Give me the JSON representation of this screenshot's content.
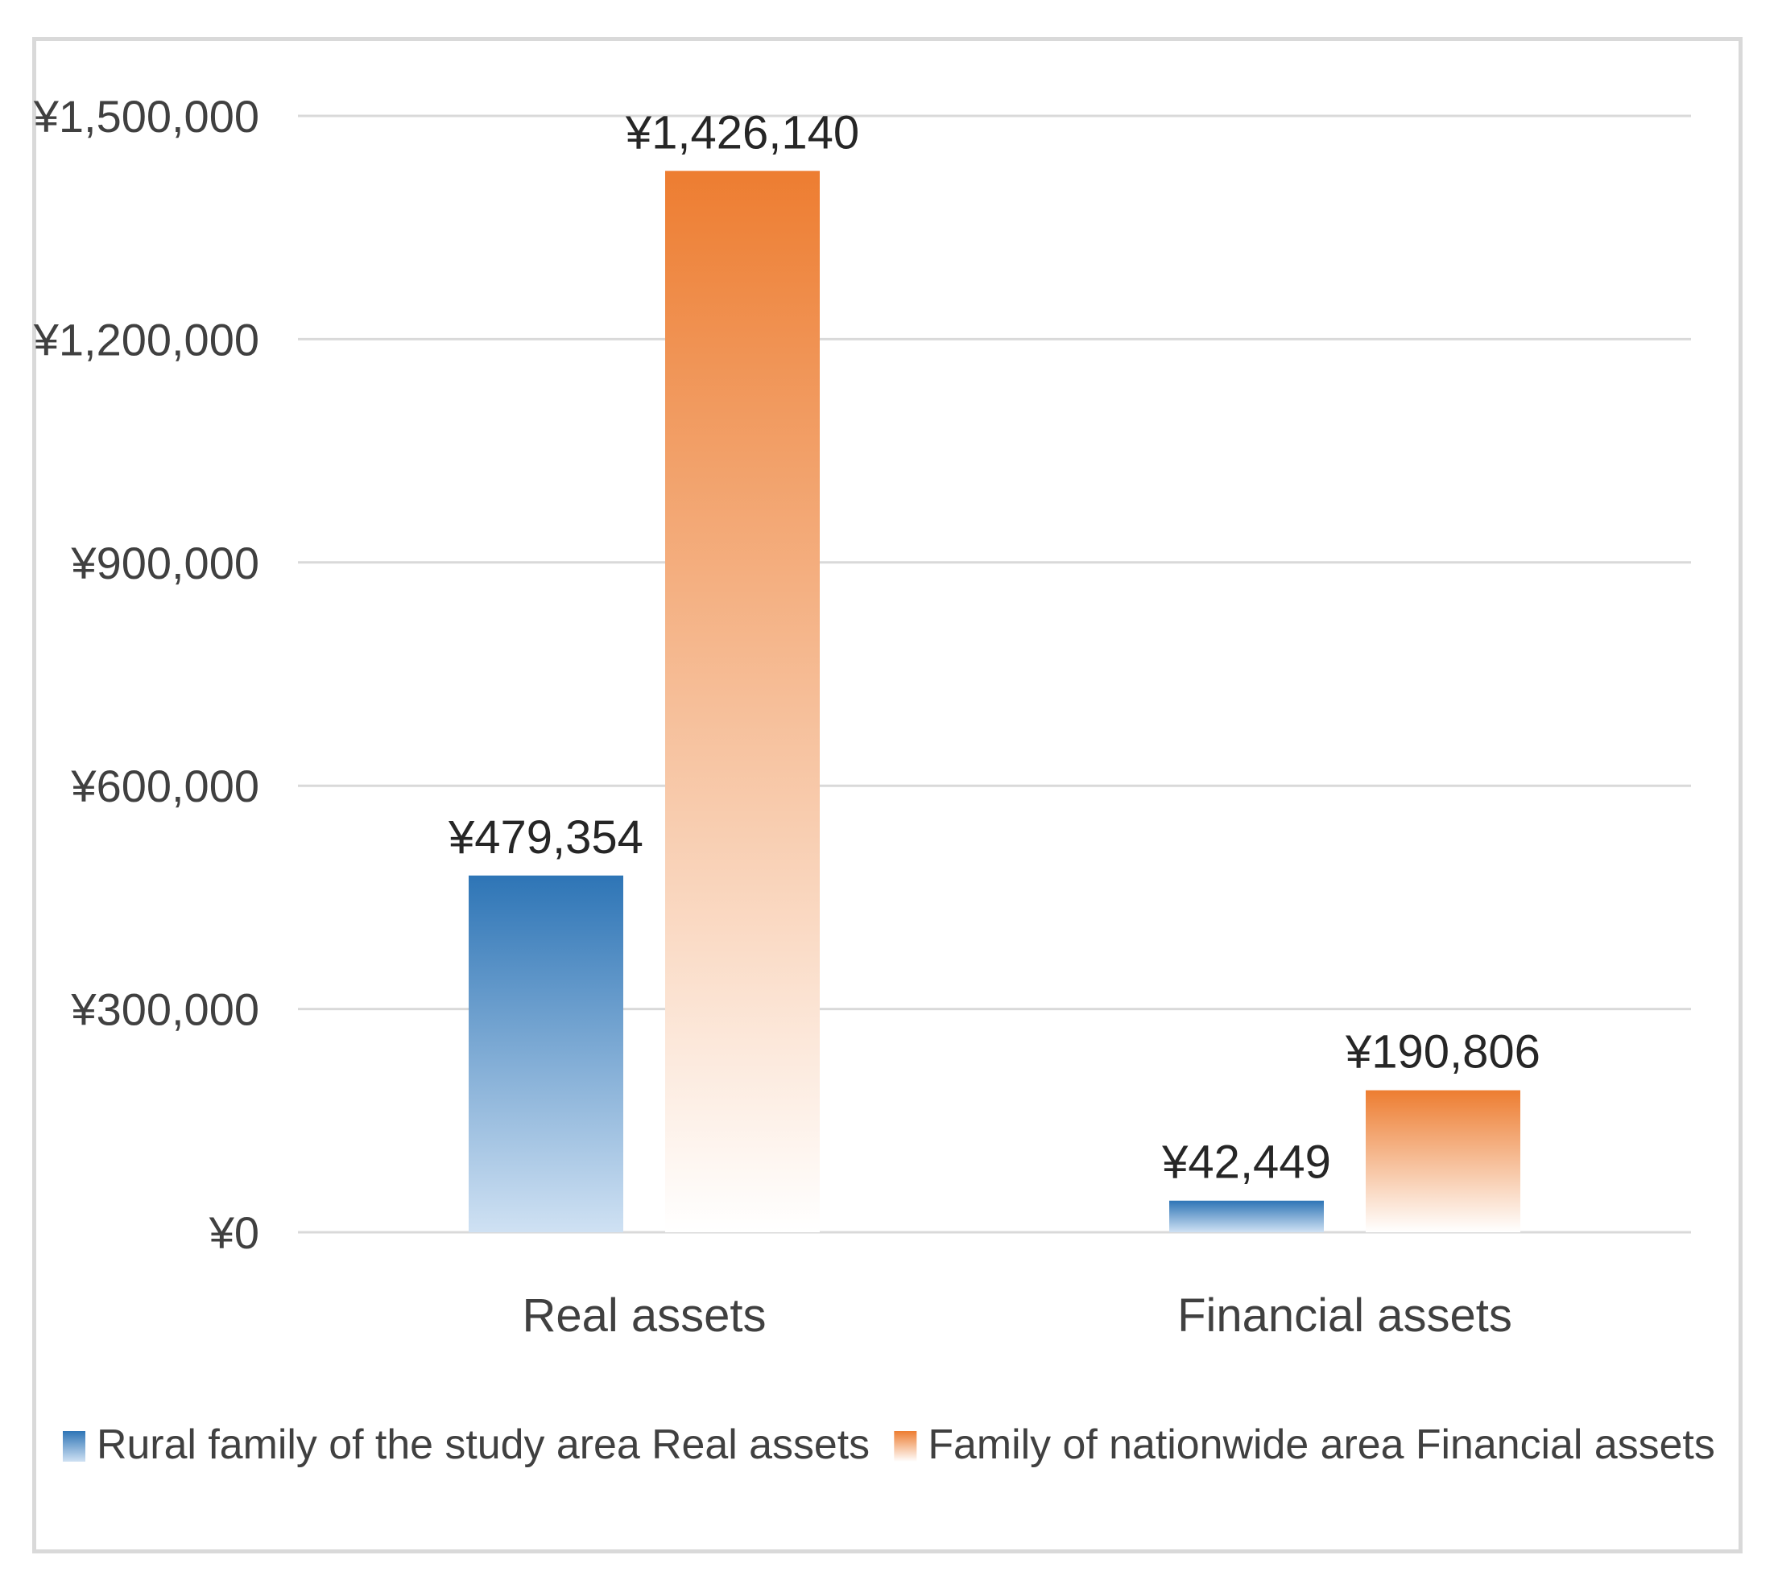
{
  "chart_data": {
    "type": "bar",
    "title": "",
    "xlabel": "",
    "ylabel": "",
    "categories": [
      "Real assets",
      "Financial assets"
    ],
    "series": [
      {
        "name": "Rural family of the study area Real assets",
        "color": "#2e75b6",
        "color_light": "#cfe1f3",
        "values": [
          479354,
          42449
        ],
        "value_labels": [
          "¥479,354",
          "¥42,449"
        ]
      },
      {
        "name": "Family of nationwide area Financial assets",
        "color": "#ed7d31",
        "color_light": "#ffffff",
        "values": [
          1426140,
          190806
        ],
        "value_labels": [
          "¥1,426,140",
          "¥190,806"
        ]
      }
    ],
    "ylim": [
      0,
      1500000
    ],
    "yticks": [
      0,
      300000,
      600000,
      900000,
      1200000,
      1500000
    ],
    "ytick_labels": [
      "¥0",
      "¥300,000",
      "¥600,000",
      "¥900,000",
      "¥1,200,000",
      "¥1,500,000"
    ],
    "grid": true,
    "gridline_color": "#d9d9d9",
    "legend_position": "bottom"
  }
}
